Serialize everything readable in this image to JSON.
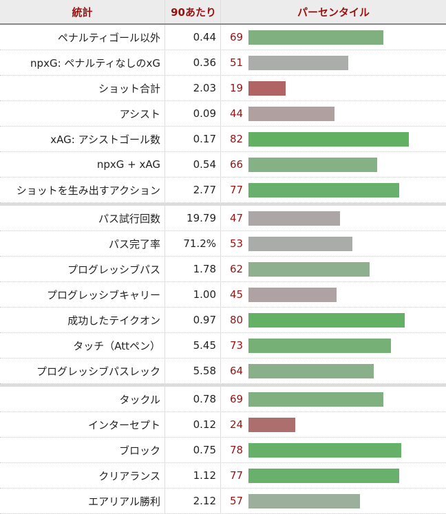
{
  "header": {
    "stat": "統計",
    "per90": "90あたり",
    "percentile": "パーセンタイル"
  },
  "sections": [
    [
      {
        "stat": "ペナルティゴール以外",
        "value": "0.44",
        "percentile": 69,
        "color": "#80b080"
      },
      {
        "stat": "npxG: ペナルティなしのxG",
        "value": "0.36",
        "percentile": 51,
        "color": "#aaadaa"
      },
      {
        "stat": "ショット合計",
        "value": "2.03",
        "percentile": 19,
        "color": "#b06464"
      },
      {
        "stat": "アシスト",
        "value": "0.09",
        "percentile": 44,
        "color": "#b0a0a0"
      },
      {
        "stat": "xAG: アシストゴール数",
        "value": "0.17",
        "percentile": 82,
        "color": "#62b062"
      },
      {
        "stat": "npxG + xAG",
        "value": "0.54",
        "percentile": 66,
        "color": "#86b086"
      },
      {
        "stat": "ショットを生み出すアクション",
        "value": "2.77",
        "percentile": 77,
        "color": "#69b06d"
      }
    ],
    [
      {
        "stat": "パス試行回数",
        "value": "19.79",
        "percentile": 47,
        "color": "#aca6a6"
      },
      {
        "stat": "パス完了率",
        "value": "71.2%",
        "percentile": 53,
        "color": "#a9ada9"
      },
      {
        "stat": "プログレッシブパス",
        "value": "1.78",
        "percentile": 62,
        "color": "#8eb08e"
      },
      {
        "stat": "プログレッシブキャリー",
        "value": "1.00",
        "percentile": 45,
        "color": "#aea2a2"
      },
      {
        "stat": "成功したテイクオン",
        "value": "0.97",
        "percentile": 80,
        "color": "#64b064"
      },
      {
        "stat": "タッチ（Attペン）",
        "value": "5.45",
        "percentile": 73,
        "color": "#76b077"
      },
      {
        "stat": "プログレッシブパスレック",
        "value": "5.58",
        "percentile": 64,
        "color": "#8ab08a"
      }
    ],
    [
      {
        "stat": "タックル",
        "value": "0.78",
        "percentile": 69,
        "color": "#80b080"
      },
      {
        "stat": "インターセプト",
        "value": "0.12",
        "percentile": 24,
        "color": "#ad6f6d"
      },
      {
        "stat": "ブロック",
        "value": "0.75",
        "percentile": 78,
        "color": "#67b06a"
      },
      {
        "stat": "クリアランス",
        "value": "1.12",
        "percentile": 77,
        "color": "#69b06d"
      },
      {
        "stat": "エアリアル勝利",
        "value": "2.12",
        "percentile": 57,
        "color": "#9caf9c"
      }
    ]
  ]
}
